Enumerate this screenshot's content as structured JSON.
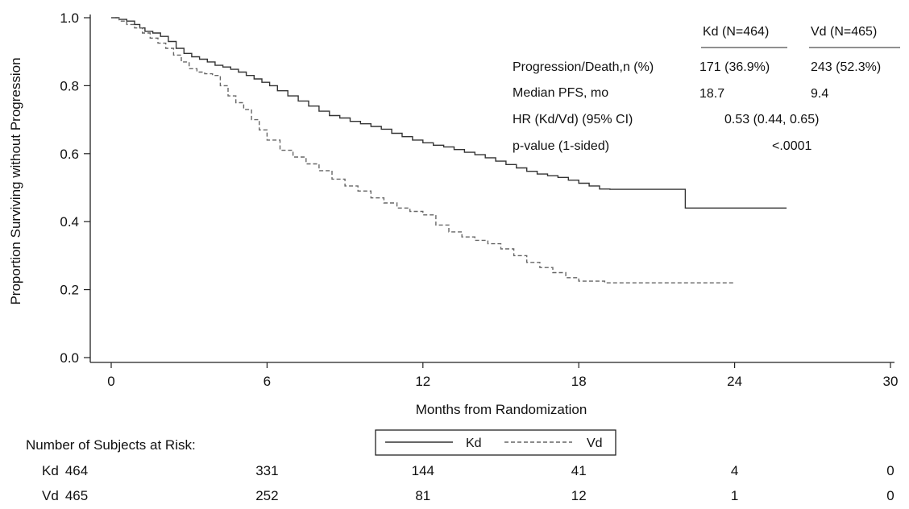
{
  "chart_data": {
    "type": "line",
    "xlabel": "Months from Randomization",
    "ylabel": "Proportion Surviving without Progression",
    "xlim": [
      0,
      30
    ],
    "ylim": [
      0,
      1.0
    ],
    "x_ticks": [
      0,
      6,
      12,
      18,
      24,
      30
    ],
    "x_tick_labels": [
      "0",
      "6",
      "12",
      "18",
      "24",
      "30"
    ],
    "y_ticks": [
      0,
      0.2,
      0.4,
      0.6,
      0.8,
      1.0
    ],
    "y_tick_labels": [
      "0.0",
      "0.2",
      "0.4",
      "0.6",
      "0.8",
      "1.0"
    ],
    "grid": false,
    "legend_position": "bottom-center",
    "series": [
      {
        "name": "Kd",
        "style": "solid",
        "color": "#333333",
        "x": [
          0,
          0.3,
          0.6,
          0.9,
          1.1,
          1.3,
          1.6,
          1.9,
          2.2,
          2.5,
          2.8,
          3.1,
          3.4,
          3.7,
          4.0,
          4.3,
          4.6,
          4.9,
          5.2,
          5.5,
          5.8,
          6.1,
          6.4,
          6.8,
          7.2,
          7.6,
          8.0,
          8.4,
          8.8,
          9.2,
          9.6,
          10.0,
          10.4,
          10.8,
          11.2,
          11.6,
          12.0,
          12.4,
          12.8,
          13.2,
          13.6,
          14.0,
          14.4,
          14.8,
          15.2,
          15.6,
          16.0,
          16.4,
          16.8,
          17.2,
          17.6,
          18.0,
          18.4,
          18.8,
          19.2,
          20.0,
          21.0,
          22.0,
          22.1,
          24.0,
          25.0,
          26.0
        ],
        "y": [
          1.0,
          0.995,
          0.99,
          0.98,
          0.97,
          0.96,
          0.955,
          0.945,
          0.93,
          0.91,
          0.895,
          0.885,
          0.878,
          0.87,
          0.86,
          0.855,
          0.848,
          0.84,
          0.83,
          0.82,
          0.81,
          0.8,
          0.785,
          0.77,
          0.755,
          0.74,
          0.725,
          0.712,
          0.705,
          0.695,
          0.688,
          0.68,
          0.672,
          0.66,
          0.65,
          0.64,
          0.632,
          0.625,
          0.62,
          0.612,
          0.604,
          0.597,
          0.588,
          0.578,
          0.568,
          0.558,
          0.548,
          0.54,
          0.535,
          0.53,
          0.522,
          0.513,
          0.505,
          0.496,
          0.495,
          0.495,
          0.495,
          0.495,
          0.44,
          0.44,
          0.44,
          0.44
        ]
      },
      {
        "name": "Vd",
        "style": "dashed",
        "color": "#666666",
        "x": [
          0,
          0.3,
          0.6,
          0.9,
          1.2,
          1.5,
          1.8,
          2.1,
          2.4,
          2.7,
          3.0,
          3.3,
          3.6,
          3.9,
          4.2,
          4.5,
          4.8,
          5.1,
          5.4,
          5.7,
          6.0,
          6.5,
          7.0,
          7.5,
          8.0,
          8.5,
          9.0,
          9.5,
          10.0,
          10.5,
          11.0,
          11.5,
          12.0,
          12.5,
          13.0,
          13.5,
          14.0,
          14.5,
          15.0,
          15.5,
          16.0,
          16.5,
          17.0,
          17.5,
          18.0,
          19.0,
          20.0,
          21.0,
          22.0,
          23.0,
          24.0
        ],
        "y": [
          1.0,
          0.99,
          0.98,
          0.97,
          0.955,
          0.94,
          0.925,
          0.91,
          0.89,
          0.87,
          0.85,
          0.84,
          0.835,
          0.83,
          0.8,
          0.77,
          0.75,
          0.73,
          0.7,
          0.67,
          0.64,
          0.61,
          0.59,
          0.57,
          0.55,
          0.525,
          0.505,
          0.49,
          0.47,
          0.455,
          0.44,
          0.43,
          0.42,
          0.39,
          0.37,
          0.355,
          0.345,
          0.335,
          0.32,
          0.3,
          0.28,
          0.265,
          0.25,
          0.235,
          0.225,
          0.22,
          0.22,
          0.22,
          0.22,
          0.22,
          0.22
        ]
      }
    ],
    "stats_table": {
      "col_headers": [
        "Kd (N=464)",
        "Vd (N=465)"
      ],
      "rows": [
        {
          "label": "Progression/Death,n (%)",
          "kd": "171  (36.9%)",
          "vd": "243  (52.3%)"
        },
        {
          "label": "Median PFS, mo",
          "kd": "18.7",
          "vd": "9.4"
        },
        {
          "label": "HR (Kd/Vd) (95% CI)",
          "combined": "0.53  (0.44,  0.65)"
        },
        {
          "label": "p-value  (1-sided)",
          "combined": "<.0001"
        }
      ]
    },
    "risk_table": {
      "title": "Number of Subjects at Risk:",
      "times": [
        0,
        6,
        12,
        18,
        24,
        30
      ],
      "rows": [
        {
          "name": "Kd",
          "values": [
            "464",
            "331",
            "144",
            "41",
            "4",
            "0"
          ]
        },
        {
          "name": "Vd",
          "values": [
            "465",
            "252",
            "81",
            "12",
            "1",
            "0"
          ]
        }
      ]
    }
  }
}
